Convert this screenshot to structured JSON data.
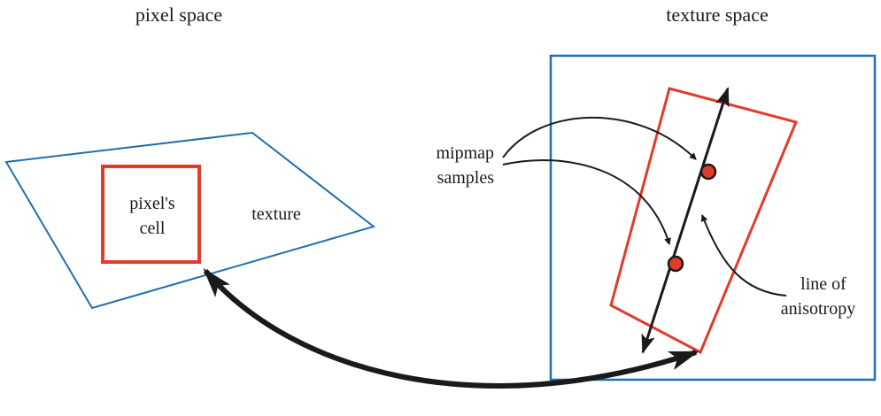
{
  "headings": {
    "left": "pixel space",
    "right": "texture space"
  },
  "labels": {
    "pixel_cell_line1": "pixel's",
    "pixel_cell_line2": "cell",
    "texture": "texture",
    "mipmap_line1": "mipmap",
    "mipmap_line2": "samples",
    "line_of_line1": "line of",
    "line_of_line2": "anisotropy"
  },
  "colors": {
    "blue": "#1f6fb2",
    "red": "#e23b2a",
    "black": "#1a1a1a"
  }
}
